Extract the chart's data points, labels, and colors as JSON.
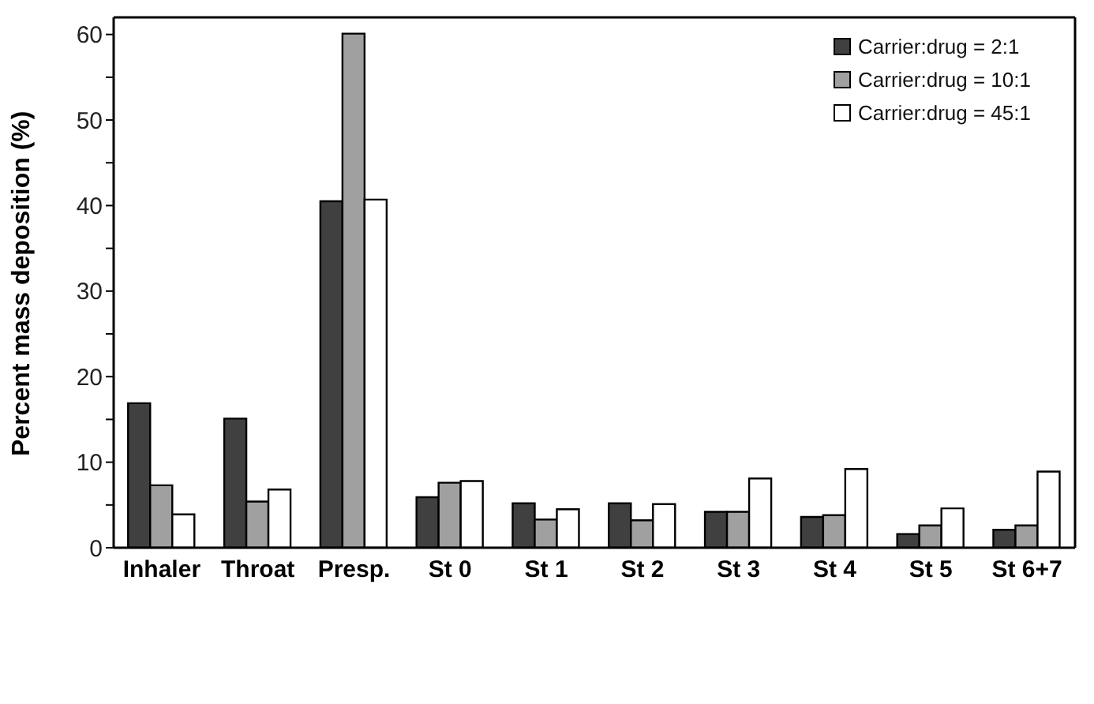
{
  "chart_data": {
    "type": "bar",
    "ylabel": "Percent mass deposition (%)",
    "categories": [
      "Inhaler",
      "Throat",
      "Presp.",
      "St 0",
      "St 1",
      "St 2",
      "St 3",
      "St 4",
      "St 5",
      "St 6+7"
    ],
    "series": [
      {
        "name": "Carrier:drug = 2:1",
        "color": "#404040",
        "values": [
          16.9,
          15.1,
          40.5,
          5.9,
          5.2,
          5.2,
          4.2,
          3.6,
          1.6,
          2.1
        ]
      },
      {
        "name": "Carrier:drug = 10:1",
        "color": "#a0a0a0",
        "values": [
          7.3,
          5.4,
          60.1,
          7.6,
          3.3,
          3.2,
          4.2,
          3.8,
          2.6,
          2.6
        ]
      },
      {
        "name": "Carrier:drug = 45:1",
        "color": "#ffffff",
        "values": [
          3.9,
          6.8,
          40.7,
          7.8,
          4.5,
          5.1,
          8.1,
          9.2,
          4.6,
          8.9
        ]
      }
    ],
    "ylim": [
      0,
      62
    ],
    "yticks": [
      0,
      {
        "value": 5,
        "label": null
      },
      10,
      {
        "value": 15,
        "label": null
      },
      20,
      {
        "value": 25,
        "label": null
      },
      30,
      {
        "value": 35,
        "label": null
      },
      40,
      {
        "value": 45,
        "label": null
      },
      50,
      {
        "value": 55,
        "label": null
      },
      60
    ],
    "grid": false,
    "legend": "top right"
  }
}
